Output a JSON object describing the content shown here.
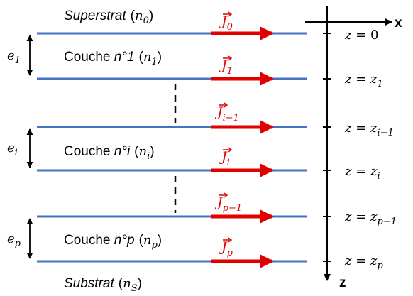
{
  "colors": {
    "interface_line": "#4472c4",
    "current_arrow": "#e00000",
    "text": "#000000"
  },
  "superstrat": {
    "word": "Superstrat",
    "index_open": "(",
    "index_symbol": "n",
    "index_sub": "0",
    "index_close": ")"
  },
  "substrat": {
    "word": "Substrat",
    "index_open": "(",
    "index_symbol": "n",
    "index_sub": "S",
    "index_close": ")"
  },
  "layers": [
    {
      "prefix": "Couche ",
      "number": "n°1",
      "index_symbol": "n",
      "index_sub": "1",
      "thickness_symbol": "e",
      "thickness_sub": "1"
    },
    {
      "prefix": "Couche ",
      "number": "n°i",
      "index_symbol": "n",
      "index_sub": "i",
      "thickness_symbol": "e",
      "thickness_sub": "i"
    },
    {
      "prefix": "Couche ",
      "number": "n°p",
      "index_symbol": "n",
      "index_sub": "p",
      "thickness_symbol": "e",
      "thickness_sub": "p"
    }
  ],
  "currents": [
    {
      "symbol": "J",
      "sub": "0"
    },
    {
      "symbol": "J",
      "sub": "1"
    },
    {
      "symbol": "J",
      "sub": "i−1"
    },
    {
      "symbol": "J",
      "sub": "i"
    },
    {
      "symbol": "J",
      "sub": "p−1"
    },
    {
      "symbol": "J",
      "sub": "p"
    }
  ],
  "positions": [
    {
      "lhs": "z",
      "eq": " = ",
      "rhs": "0",
      "rhs_sub": ""
    },
    {
      "lhs": "z",
      "eq": " = ",
      "rhs": "z",
      "rhs_sub": "1"
    },
    {
      "lhs": "z",
      "eq": " = ",
      "rhs": "z",
      "rhs_sub": "i−1"
    },
    {
      "lhs": "z",
      "eq": " = ",
      "rhs": "z",
      "rhs_sub": "i"
    },
    {
      "lhs": "z",
      "eq": " = ",
      "rhs": "z",
      "rhs_sub": "p−1"
    },
    {
      "lhs": "z",
      "eq": " = ",
      "rhs": "z",
      "rhs_sub": "p"
    }
  ],
  "axes": {
    "x_label": "x",
    "z_label": "z"
  }
}
